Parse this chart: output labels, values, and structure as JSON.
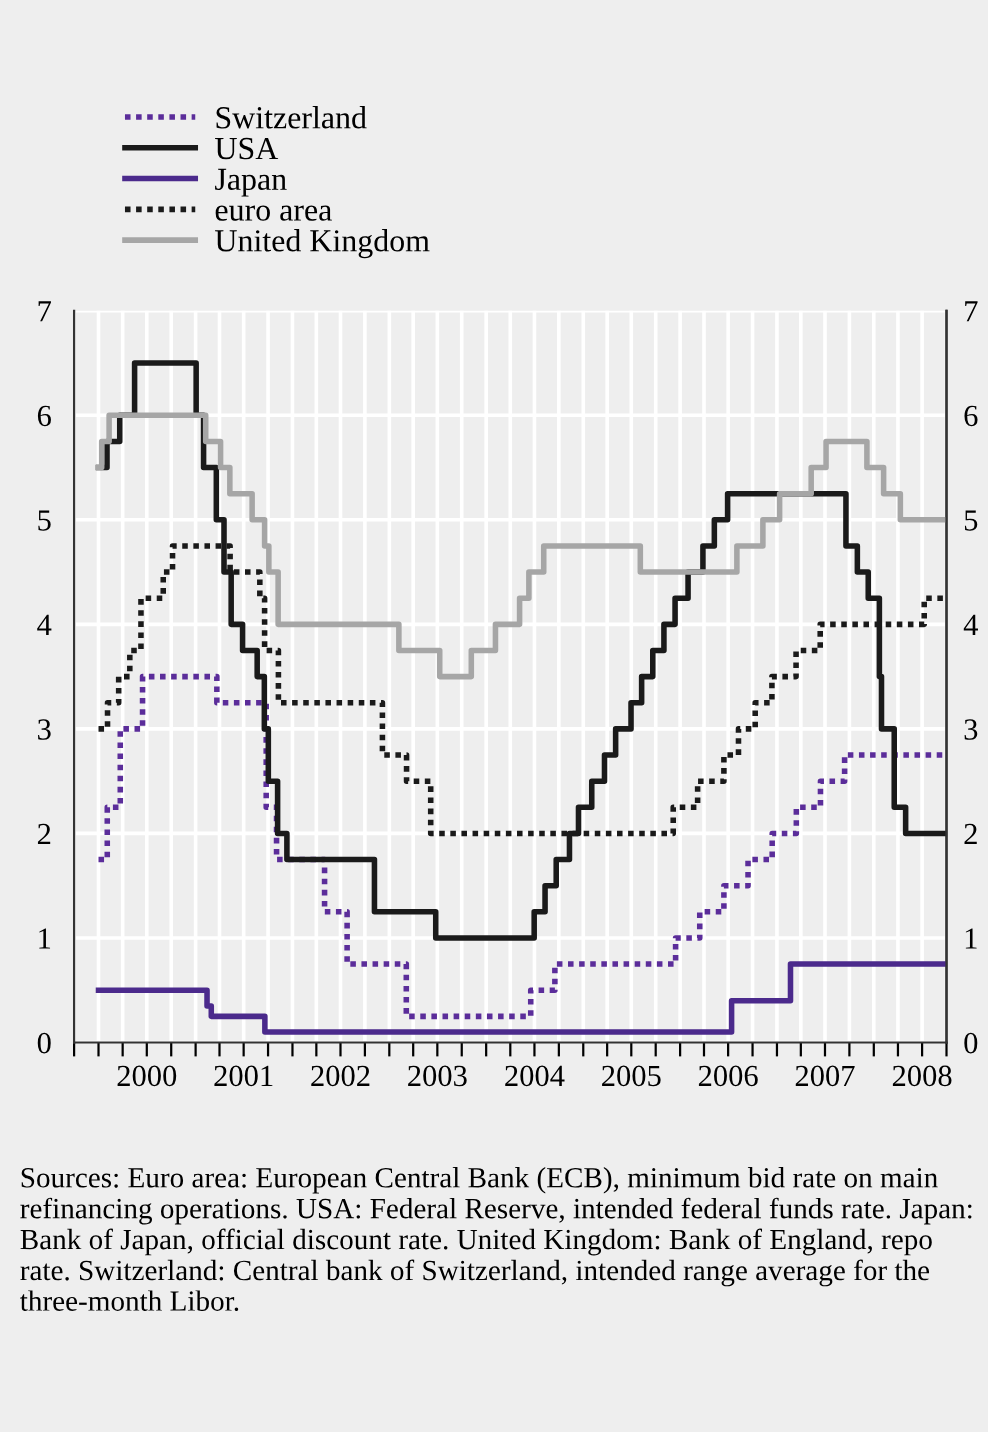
{
  "chart_data": {
    "type": "step",
    "xlim": [
      "1999-10-01",
      "2008-10-01"
    ],
    "xticks": [
      {
        "value": "1999-10-01",
        "label": null
      },
      {
        "value": "2000-01-01",
        "label": null
      },
      {
        "value": "2000-04-01",
        "label": null
      },
      {
        "value": "2000-07-01",
        "label": "2000"
      },
      {
        "value": "2000-10-01",
        "label": null
      },
      {
        "value": "2001-01-01",
        "label": null
      },
      {
        "value": "2001-04-01",
        "label": null
      },
      {
        "value": "2001-07-01",
        "label": "2001"
      },
      {
        "value": "2001-10-01",
        "label": null
      },
      {
        "value": "2002-01-01",
        "label": null
      },
      {
        "value": "2002-04-01",
        "label": null
      },
      {
        "value": "2002-07-01",
        "label": "2002"
      },
      {
        "value": "2002-10-01",
        "label": null
      },
      {
        "value": "2003-01-01",
        "label": null
      },
      {
        "value": "2003-04-01",
        "label": null
      },
      {
        "value": "2003-07-01",
        "label": "2003"
      },
      {
        "value": "2003-10-01",
        "label": null
      },
      {
        "value": "2004-01-01",
        "label": null
      },
      {
        "value": "2004-04-01",
        "label": null
      },
      {
        "value": "2004-07-01",
        "label": "2004"
      },
      {
        "value": "2004-10-01",
        "label": null
      },
      {
        "value": "2005-01-01",
        "label": null
      },
      {
        "value": "2005-04-01",
        "label": null
      },
      {
        "value": "2005-07-01",
        "label": "2005"
      },
      {
        "value": "2005-10-01",
        "label": null
      },
      {
        "value": "2006-01-01",
        "label": null
      },
      {
        "value": "2006-04-01",
        "label": null
      },
      {
        "value": "2006-07-01",
        "label": "2006"
      },
      {
        "value": "2006-10-01",
        "label": null
      },
      {
        "value": "2007-01-01",
        "label": null
      },
      {
        "value": "2007-04-01",
        "label": null
      },
      {
        "value": "2007-07-01",
        "label": "2007"
      },
      {
        "value": "2007-10-01",
        "label": null
      },
      {
        "value": "2008-01-01",
        "label": null
      },
      {
        "value": "2008-04-01",
        "label": null
      },
      {
        "value": "2008-07-01",
        "label": "2008"
      },
      {
        "value": "2008-10-01",
        "label": null
      }
    ],
    "ylim": [
      0,
      7
    ],
    "yticks": [
      0,
      1,
      2,
      3,
      4,
      5,
      6,
      7
    ],
    "y2lim": [
      0,
      7
    ],
    "y2ticks": [
      0,
      1,
      2,
      3,
      4,
      5,
      6,
      7
    ],
    "grid": true,
    "legend": "top left",
    "series": [
      {
        "name": "Switzerland",
        "color": "#5b2d9a",
        "line_style": "dotted",
        "x": [
          "2000-01-01",
          "2000-02-03",
          "2000-03-23",
          "2000-06-15",
          "2001-03-22",
          "2001-09-24",
          "2001-11-02",
          "2002-05-02",
          "2002-07-26",
          "2003-03-06",
          "2004-06-17",
          "2004-09-16",
          "2005-12-15",
          "2006-03-16",
          "2006-06-15",
          "2006-09-14",
          "2006-12-14",
          "2007-03-15",
          "2007-06-14",
          "2007-09-13",
          "2008-10-01"
        ],
        "values": [
          1.75,
          2.25,
          3.0,
          3.5,
          3.25,
          2.25,
          1.75,
          1.25,
          0.75,
          0.25,
          0.5,
          0.75,
          1.0,
          1.25,
          1.5,
          1.75,
          2.0,
          2.25,
          2.5,
          2.75,
          2.75
        ]
      },
      {
        "name": "USA",
        "color": "#1a1a1a",
        "line_style": "solid",
        "x": [
          "2000-01-01",
          "2000-02-02",
          "2000-03-21",
          "2000-05-16",
          "2001-01-03",
          "2001-01-31",
          "2001-03-20",
          "2001-04-18",
          "2001-05-15",
          "2001-06-27",
          "2001-08-21",
          "2001-09-17",
          "2001-10-02",
          "2001-11-06",
          "2001-12-11",
          "2002-11-06",
          "2003-06-25",
          "2004-06-30",
          "2004-08-10",
          "2004-09-21",
          "2004-11-10",
          "2004-12-14",
          "2005-02-02",
          "2005-03-22",
          "2005-05-03",
          "2005-06-30",
          "2005-08-09",
          "2005-09-20",
          "2005-11-01",
          "2005-12-13",
          "2006-01-31",
          "2006-03-28",
          "2006-05-10",
          "2006-06-29",
          "2007-09-18",
          "2007-10-31",
          "2007-12-11",
          "2008-01-22",
          "2008-01-30",
          "2008-03-18",
          "2008-04-30",
          "2008-10-01"
        ],
        "values": [
          5.5,
          5.75,
          6.0,
          6.5,
          6.0,
          5.5,
          5.0,
          4.5,
          4.0,
          3.75,
          3.5,
          3.0,
          2.5,
          2.0,
          1.75,
          1.25,
          1.0,
          1.25,
          1.5,
          1.75,
          2.0,
          2.25,
          2.5,
          2.75,
          3.0,
          3.25,
          3.5,
          3.75,
          4.0,
          4.25,
          4.5,
          4.75,
          5.0,
          5.25,
          4.75,
          4.5,
          4.25,
          3.5,
          3.0,
          2.25,
          2.0,
          2.0
        ]
      },
      {
        "name": "Japan",
        "color": "#4b2a8c",
        "line_style": "solid",
        "x": [
          "2000-01-01",
          "2001-02-13",
          "2001-03-01",
          "2001-09-19",
          "2006-07-14",
          "2007-02-21",
          "2008-10-01"
        ],
        "values": [
          0.5,
          0.35,
          0.25,
          0.1,
          0.4,
          0.75,
          0.75
        ]
      },
      {
        "name": "euro area",
        "color": "#1a1a1a",
        "line_style": "dotted",
        "x": [
          "2000-01-01",
          "2000-02-04",
          "2000-03-17",
          "2000-04-28",
          "2000-06-09",
          "2000-09-01",
          "2000-10-06",
          "2001-05-11",
          "2001-08-31",
          "2001-09-18",
          "2001-11-09",
          "2002-12-06",
          "2003-03-07",
          "2003-06-06",
          "2005-12-06",
          "2006-03-08",
          "2006-06-15",
          "2006-08-09",
          "2006-10-11",
          "2006-12-13",
          "2007-03-14",
          "2007-06-13",
          "2008-07-09",
          "2008-10-01"
        ],
        "values": [
          3.0,
          3.25,
          3.5,
          3.75,
          4.25,
          4.5,
          4.75,
          4.5,
          4.25,
          3.75,
          3.25,
          2.75,
          2.5,
          2.0,
          2.25,
          2.5,
          2.75,
          3.0,
          3.25,
          3.5,
          3.75,
          4.0,
          4.25,
          4.25
        ]
      },
      {
        "name": "United Kingdom",
        "color": "#a6a6a6",
        "line_style": "solid",
        "x": [
          "2000-01-01",
          "2000-01-13",
          "2000-02-10",
          "2001-02-08",
          "2001-04-05",
          "2001-05-10",
          "2001-08-02",
          "2001-09-18",
          "2001-10-04",
          "2001-11-08",
          "2003-02-06",
          "2003-07-10",
          "2003-11-06",
          "2004-02-05",
          "2004-05-06",
          "2004-06-10",
          "2004-08-05",
          "2005-08-04",
          "2006-08-03",
          "2006-11-09",
          "2007-01-11",
          "2007-05-10",
          "2007-07-05",
          "2007-12-06",
          "2008-02-07",
          "2008-04-10",
          "2008-10-01"
        ],
        "values": [
          5.5,
          5.75,
          6.0,
          5.75,
          5.5,
          5.25,
          5.0,
          4.75,
          4.5,
          4.0,
          3.75,
          3.5,
          3.75,
          4.0,
          4.25,
          4.5,
          4.75,
          4.5,
          4.75,
          5.0,
          5.25,
          5.5,
          5.75,
          5.5,
          5.25,
          5.0,
          5.0
        ]
      }
    ],
    "annotations": [
      "Sources: Euro area: European Central Bank (ECB), minimum bid rate on main refinancing operations. USA: Federal Reserve, intended federal funds rate. Japan: Bank of Japan, official discount rate. United Kingdom: Bank of England, repo rate. Switzerland: Central bank of Switzerland, intended range average for the three-month Libor."
    ]
  }
}
